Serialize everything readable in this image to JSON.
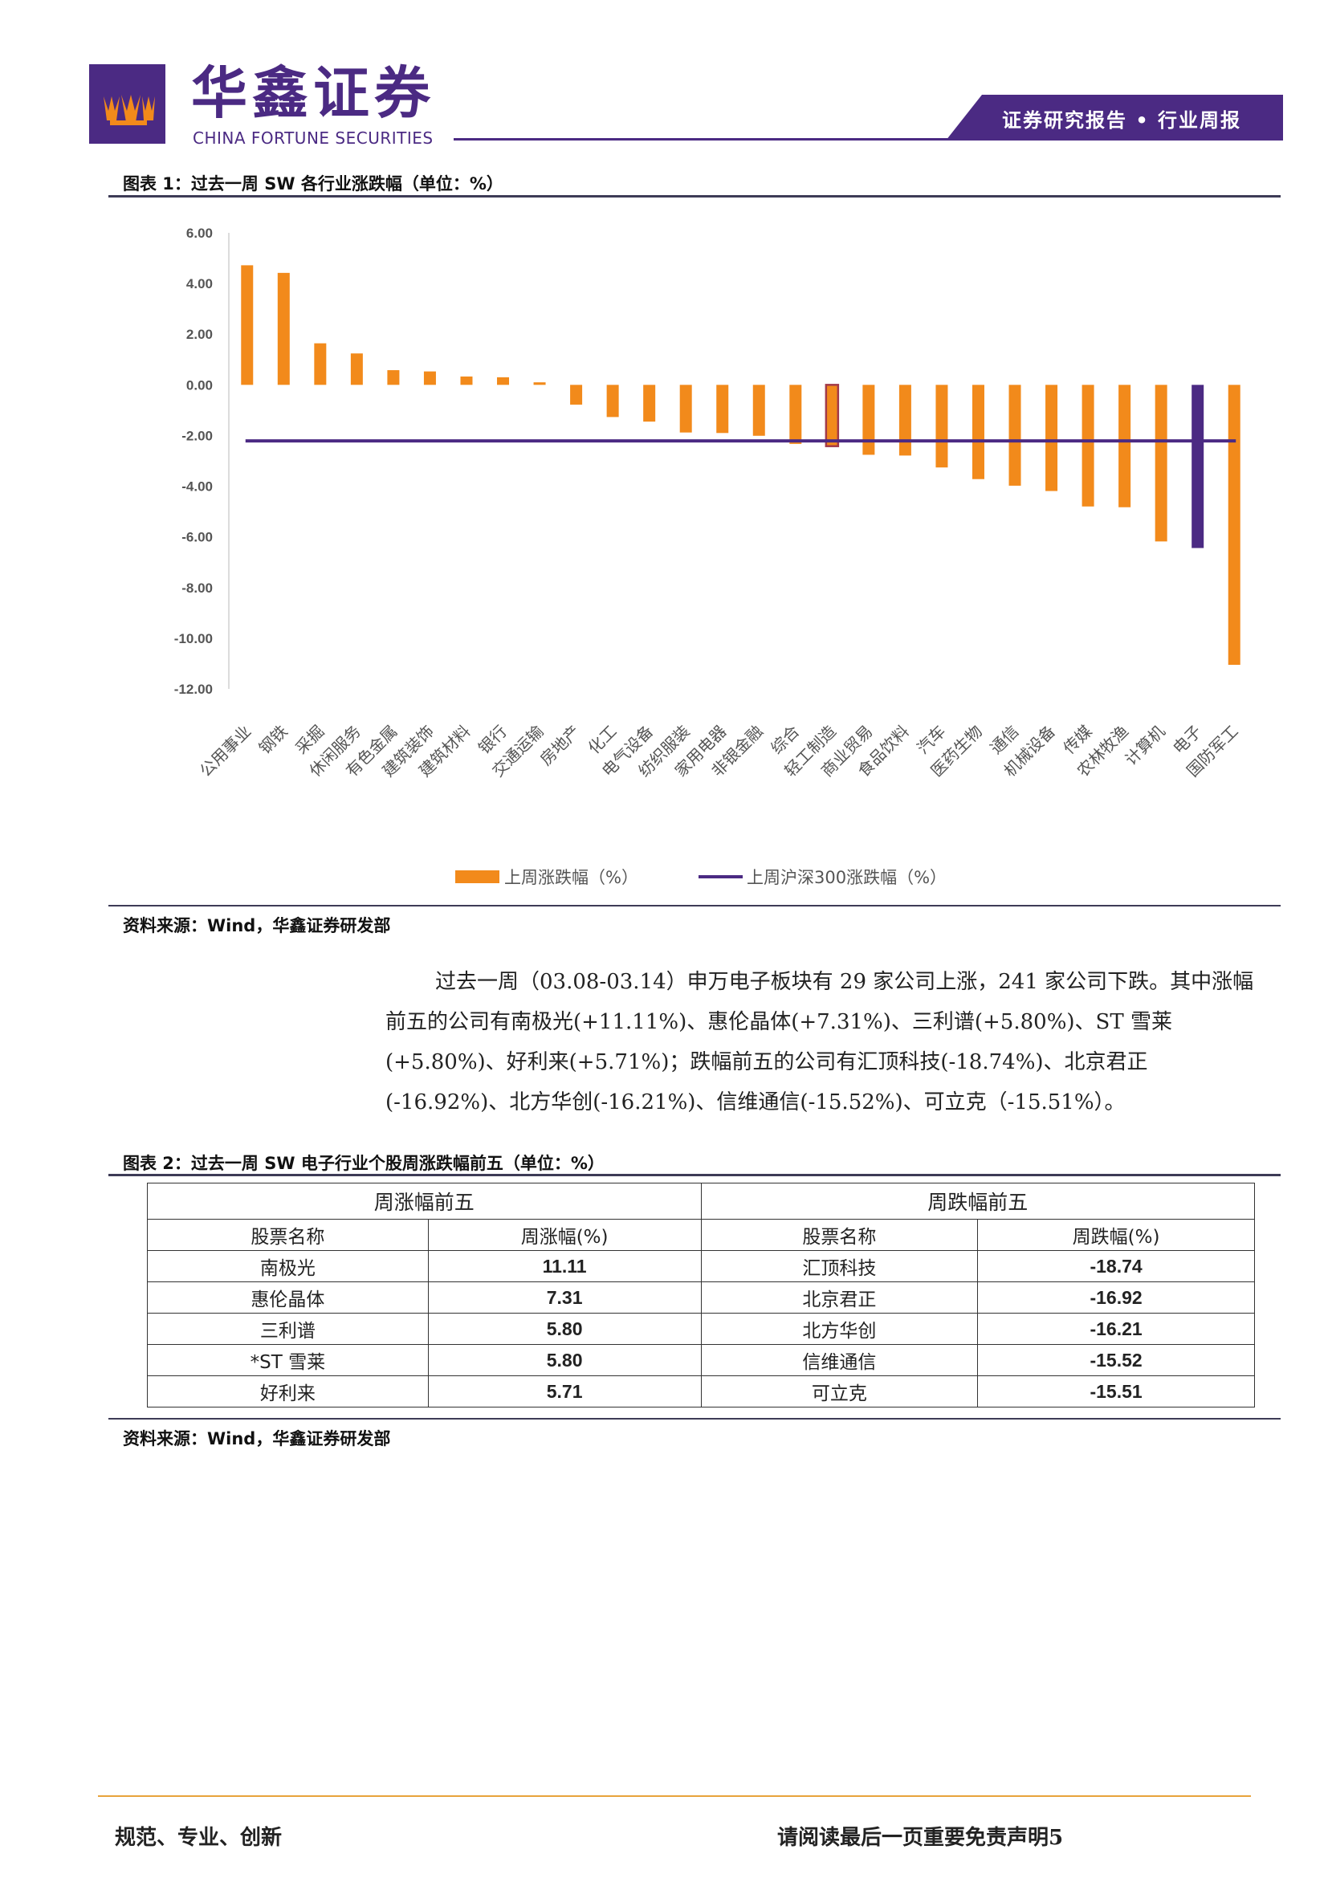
{
  "header": {
    "brand_cn": "华鑫证券",
    "brand_en": "CHINA FORTUNE SECURITIES",
    "report_tag": "证券研究报告 • 行业周报",
    "brand_color": "#4b2a83"
  },
  "figure1": {
    "caption": "图表 1：过去一周 SW 各行业涨跌幅（单位：%）",
    "source": "资料来源：Wind，华鑫证券研发部"
  },
  "chart_data": {
    "type": "bar",
    "title": "",
    "xlabel": "",
    "ylabel": "",
    "ylim": [
      -12,
      6
    ],
    "yticks": [
      "6.00",
      "4.00",
      "2.00",
      "0.00",
      "-2.00",
      "-4.00",
      "-6.00",
      "-8.00",
      "-10.00",
      "-12.00"
    ],
    "categories": [
      "公用事业",
      "钢铁",
      "采掘",
      "休闲服务",
      "有色金属",
      "建筑装饰",
      "建筑材料",
      "银行",
      "交通运输",
      "房地产",
      "化工",
      "电气设备",
      "纺织服装",
      "家用电器",
      "非银金融",
      "综合",
      "轻工制造",
      "商业贸易",
      "食品饮料",
      "汽车",
      "医药生物",
      "通信",
      "机械设备",
      "传媒",
      "农林牧渔",
      "计算机",
      "电子",
      "国防军工"
    ],
    "series": [
      {
        "name": "上周涨跌幅（%）",
        "color": "#f28a1b",
        "values": [
          4.72,
          4.42,
          1.64,
          1.24,
          0.58,
          0.53,
          0.33,
          0.3,
          0.1,
          -0.78,
          -1.27,
          -1.45,
          -1.88,
          -1.9,
          -2.01,
          -2.33,
          -2.42,
          -2.76,
          -2.79,
          -3.26,
          -3.72,
          -3.98,
          -4.19,
          -4.8,
          -4.83,
          -6.18,
          -6.44,
          -11.05
        ]
      },
      {
        "name": "上周沪深300涨跌幅（%）",
        "color": "#4b2a83",
        "type": "line",
        "value": -2.21
      }
    ],
    "highlight": {
      "轻工制造": "#a23a4a",
      "电子": "#4b2a83"
    },
    "legend_position": "bottom",
    "grid": false
  },
  "paragraph": {
    "text": "过去一周（03.08-03.14）申万电子板块有 29 家公司上涨，241 家公司下跌。其中涨幅前五的公司有南极光(+11.11%)、惠伦晶体(+7.31%)、三利谱(+5.80%)、ST 雪莱(+5.80%)、好利来(+5.71%)；跌幅前五的公司有汇顶科技(-18.74%)、北京君正(-16.92%)、北方华创(-16.21%)、信维通信(-15.52%)、可立克（-15.51%）。"
  },
  "figure2": {
    "caption": "图表 2：过去一周 SW 电子行业个股周涨跌幅前五（单位：%）",
    "source": "资料来源：Wind，华鑫证券研发部",
    "group_up": "周涨幅前五",
    "group_down": "周跌幅前五",
    "col_name_up": "股票名称",
    "col_chg_up": "周涨幅(%)",
    "col_name_down": "股票名称",
    "col_chg_down": "周跌幅(%)",
    "rows": [
      {
        "up_name": "南极光",
        "up_chg": "11.11",
        "down_name": "汇顶科技",
        "down_chg": "-18.74"
      },
      {
        "up_name": "惠伦晶体",
        "up_chg": "7.31",
        "down_name": "北京君正",
        "down_chg": "-16.92"
      },
      {
        "up_name": "三利谱",
        "up_chg": "5.80",
        "down_name": "北方华创",
        "down_chg": "-16.21"
      },
      {
        "up_name": "*ST 雪莱",
        "up_chg": "5.80",
        "down_name": "信维通信",
        "down_chg": "-15.52"
      },
      {
        "up_name": "好利来",
        "up_chg": "5.71",
        "down_name": "可立克",
        "down_chg": "-15.51"
      }
    ]
  },
  "footer": {
    "left": "规范、专业、创新",
    "right": "请阅读最后一页重要免责声明",
    "page": "5"
  }
}
